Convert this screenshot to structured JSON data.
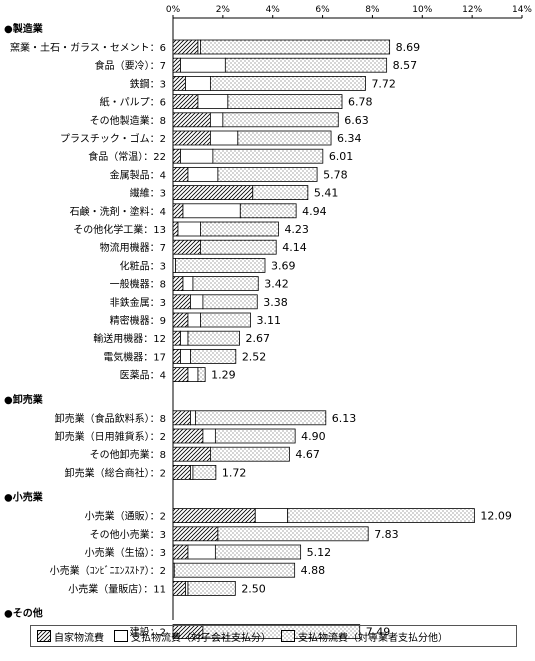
{
  "chart_data": {
    "type": "bar",
    "orientation": "horizontal",
    "stacked": true,
    "xlim": [
      0,
      14
    ],
    "x_ticks": [
      "0%",
      "2%",
      "4%",
      "6%",
      "8%",
      "10%",
      "12%",
      "14%"
    ],
    "grid": false,
    "legend_position": "bottom",
    "series": [
      {
        "name": "自家物流費",
        "pattern": "diagonal-hatch"
      },
      {
        "name": "支払物流費（対子会社支払分）",
        "pattern": "white"
      },
      {
        "name": "支払物流費（対専業者支払分他）",
        "pattern": "dots"
      }
    ],
    "groups": [
      {
        "label": "●製造業",
        "rows": [
          {
            "label": "窯業・土石・ガラス・セメント",
            "n": "6",
            "values": [
              1.0,
              0.1,
              7.59
            ],
            "total": "8.69"
          },
          {
            "label": "食品（要冷）",
            "n": "7",
            "values": [
              0.3,
              1.8,
              6.47
            ],
            "total": "8.57"
          },
          {
            "label": "鉄鋼",
            "n": "3",
            "values": [
              0.5,
              1.0,
              6.22
            ],
            "total": "7.72"
          },
          {
            "label": "紙・パルプ",
            "n": "6",
            "values": [
              1.0,
              1.2,
              4.58
            ],
            "total": "6.78"
          },
          {
            "label": "その他製造業",
            "n": "8",
            "values": [
              1.5,
              0.5,
              4.63
            ],
            "total": "6.63"
          },
          {
            "label": "プラスチック・ゴム",
            "n": "2",
            "values": [
              1.5,
              1.1,
              3.74
            ],
            "total": "6.34"
          },
          {
            "label": "食品（常温）",
            "n": "22",
            "values": [
              0.3,
              1.3,
              4.41
            ],
            "total": "6.01"
          },
          {
            "label": "金属製品",
            "n": "4",
            "values": [
              0.6,
              1.2,
              3.98
            ],
            "total": "5.78"
          },
          {
            "label": "繊維",
            "n": "3",
            "values": [
              3.2,
              0.0,
              2.21
            ],
            "total": "5.41"
          },
          {
            "label": "石鹸・洗剤・塗料",
            "n": "4",
            "values": [
              0.4,
              2.3,
              2.24
            ],
            "total": "4.94"
          },
          {
            "label": "その他化学工業",
            "n": "13",
            "values": [
              0.2,
              0.9,
              3.13
            ],
            "total": "4.23"
          },
          {
            "label": "物流用機器",
            "n": "7",
            "values": [
              1.1,
              0.0,
              3.04
            ],
            "total": "4.14"
          },
          {
            "label": "化粧品",
            "n": "3",
            "values": [
              0.0,
              0.1,
              3.59
            ],
            "total": "3.69"
          },
          {
            "label": "一般機器",
            "n": "8",
            "values": [
              0.4,
              0.4,
              2.62
            ],
            "total": "3.42"
          },
          {
            "label": "非鉄金属",
            "n": "3",
            "values": [
              0.7,
              0.5,
              2.18
            ],
            "total": "3.38"
          },
          {
            "label": "精密機器",
            "n": "9",
            "values": [
              0.6,
              0.5,
              2.01
            ],
            "total": "3.11"
          },
          {
            "label": "輸送用機器",
            "n": "12",
            "values": [
              0.3,
              0.3,
              2.07
            ],
            "total": "2.67"
          },
          {
            "label": "電気機器",
            "n": "17",
            "values": [
              0.3,
              0.4,
              1.82
            ],
            "total": "2.52"
          },
          {
            "label": "医薬品",
            "n": "4",
            "values": [
              0.6,
              0.4,
              0.29
            ],
            "total": "1.29"
          }
        ]
      },
      {
        "label": "●卸売業",
        "rows": [
          {
            "label": "卸売業（食品飲料系）",
            "n": "8",
            "values": [
              0.7,
              0.2,
              5.23
            ],
            "total": "6.13"
          },
          {
            "label": "卸売業（日用雑貨系）",
            "n": "2",
            "values": [
              1.2,
              0.5,
              3.2
            ],
            "total": "4.90"
          },
          {
            "label": "その他卸売業",
            "n": "8",
            "values": [
              1.5,
              0.0,
              3.17
            ],
            "total": "4.67"
          },
          {
            "label": "卸売業（総合商社）",
            "n": "2",
            "values": [
              0.7,
              0.1,
              0.92
            ],
            "total": "1.72"
          }
        ]
      },
      {
        "label": "●小売業",
        "rows": [
          {
            "label": "小売業（通販）",
            "n": "2",
            "values": [
              3.3,
              1.3,
              7.49
            ],
            "total": "12.09"
          },
          {
            "label": "その他小売業",
            "n": "3",
            "values": [
              1.8,
              0.0,
              6.03
            ],
            "total": "7.83"
          },
          {
            "label": "小売業（生協）",
            "n": "3",
            "values": [
              0.6,
              1.1,
              3.42
            ],
            "total": "5.12"
          },
          {
            "label": "小売業（ｺﾝﾋﾞﾆｴﾝｽｽﾄｱ）",
            "n": "2",
            "values": [
              0.0,
              0.05,
              4.83
            ],
            "total": "4.88"
          },
          {
            "label": "小売業（量販店）",
            "n": "11",
            "values": [
              0.5,
              0.1,
              1.9
            ],
            "total": "2.50"
          }
        ]
      },
      {
        "label": "●その他",
        "rows": [
          {
            "label": "建設",
            "n": "2",
            "values": [
              1.2,
              0.0,
              6.29
            ],
            "total": "7.49"
          }
        ]
      }
    ]
  }
}
